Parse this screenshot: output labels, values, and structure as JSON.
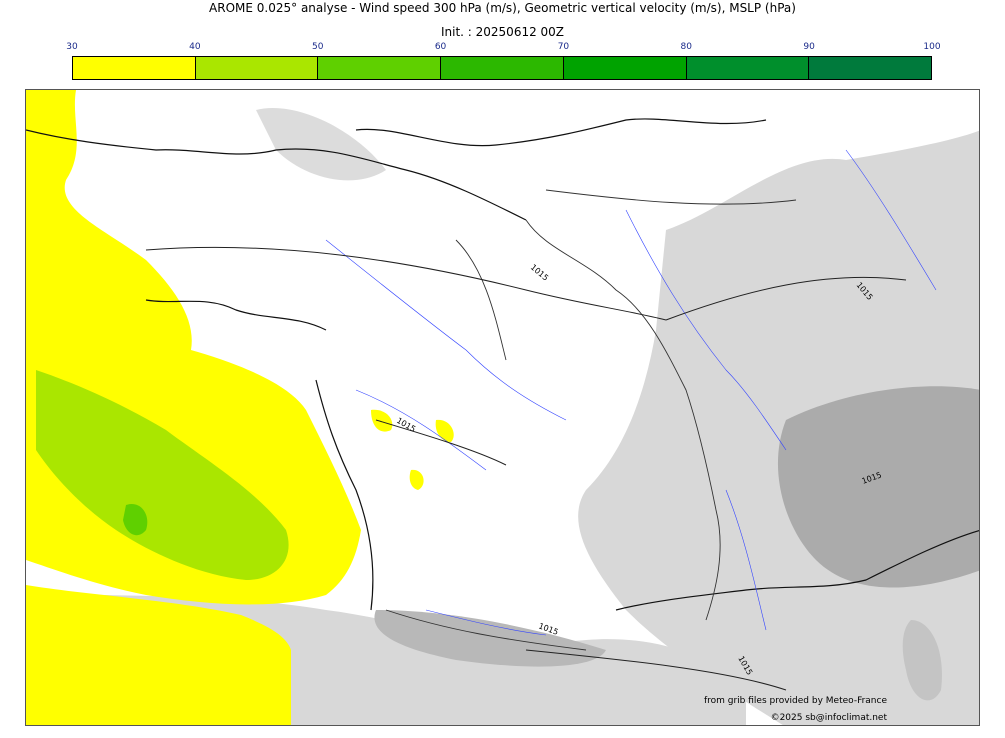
{
  "header": {
    "title": "AROME 0.025° analyse - Wind speed 300 hPa (m/s), Geometric vertical velocity (m/s), MSLP (hPa)",
    "init": "Init. : 20250612 00Z"
  },
  "colorbar": {
    "ticks": [
      "30",
      "40",
      "50",
      "60",
      "70",
      "80",
      "90",
      "100"
    ],
    "colors": [
      "#ffff00",
      "#aae600",
      "#5fd000",
      "#2cb800",
      "#00a300",
      "#008f2c",
      "#007a3c",
      "#00704e"
    ]
  },
  "isobars": {
    "labels": [
      "1015",
      "1015",
      "1015",
      "1015",
      "1015",
      "1015"
    ]
  },
  "legend_colors": {
    "shade_light": "#d6d6d6",
    "shade_dark": "#a8a8a8",
    "rivers": "#3344ff",
    "wind_30_40": "#ffff00",
    "wind_40_50": "#aae600",
    "wind_50_60": "#5fd000"
  },
  "credits": {
    "line1": "from grib files provided by Meteo-France",
    "line2": "©2025 sb@infoclimat.net"
  }
}
